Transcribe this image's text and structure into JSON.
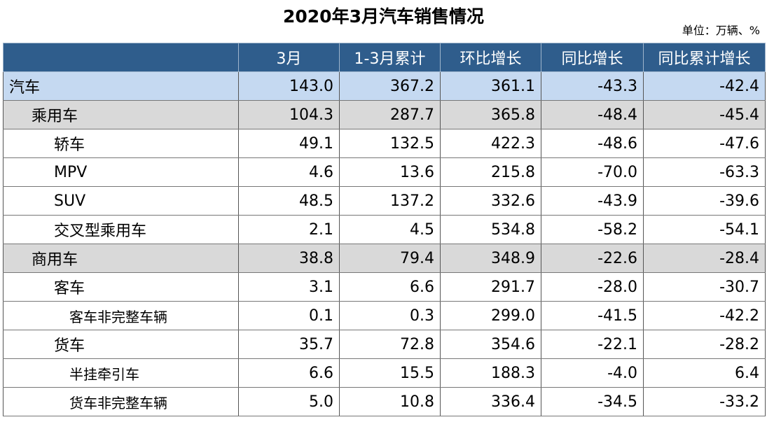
{
  "header": {
    "title": "2020年3月汽车销售情况",
    "unit": "单位：万辆、%"
  },
  "table": {
    "columns": [
      "3月",
      "1-3月累计",
      "环比增长",
      "同比增长",
      "同比累计增长"
    ],
    "rows": [
      [
        "汽车",
        "143.0",
        "367.2",
        "361.1",
        "-43.3",
        "-42.4"
      ],
      [
        "乘用车",
        "104.3",
        "287.7",
        "365.8",
        "-48.4",
        "-45.4"
      ],
      [
        "轿车",
        "49.1",
        "132.5",
        "422.3",
        "-48.6",
        "-47.6"
      ],
      [
        "MPV",
        "4.6",
        "13.6",
        "215.8",
        "-70.0",
        "-63.3"
      ],
      [
        "SUV",
        "48.5",
        "137.2",
        "332.6",
        "-43.9",
        "-39.6"
      ],
      [
        "交叉型乘用车",
        "2.1",
        "4.5",
        "534.8",
        "-58.2",
        "-54.1"
      ],
      [
        "商用车",
        "38.8",
        "79.4",
        "348.9",
        "-22.6",
        "-28.4"
      ],
      [
        "客车",
        "3.1",
        "6.6",
        "291.7",
        "-28.0",
        "-30.7"
      ],
      [
        "客车非完整车辆",
        "0.1",
        "0.3",
        "299.0",
        "-41.5",
        "-42.2"
      ],
      [
        "货车",
        "35.7",
        "72.8",
        "354.6",
        "-22.1",
        "-28.2"
      ],
      [
        "半挂牵引车",
        "6.6",
        "15.5",
        "188.3",
        "-4.0",
        "6.4"
      ],
      [
        "货车非完整车辆",
        "5.0",
        "10.8",
        "336.4",
        "-34.5",
        "-33.2"
      ]
    ]
  }
}
